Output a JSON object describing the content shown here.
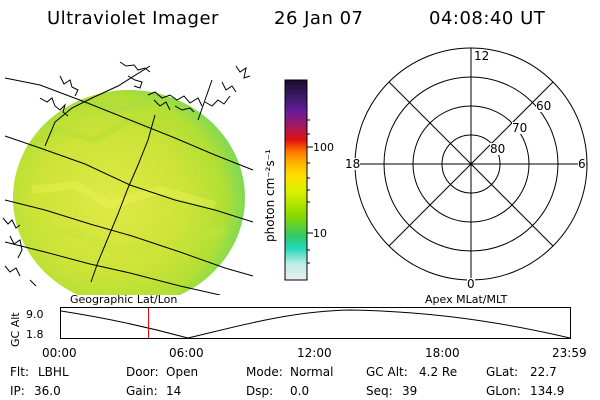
{
  "header": {
    "instrument": "Ultraviolet Imager",
    "date": "26 Jan 07",
    "time": "04:08:40 UT"
  },
  "image_panel": {
    "projection_label": "Geographic Lat/Lon",
    "colors": {
      "disk_base": "#cfe837",
      "disk_edge": "#78e05a",
      "disk_center": "#e6ef4a",
      "lines": "#000000"
    }
  },
  "colorbar": {
    "unit_label": "photon cm⁻²s⁻¹",
    "ticks": [
      "100",
      "10"
    ],
    "colors": [
      "#1a0a2a",
      "#3a1a66",
      "#6a1a9a",
      "#aa1a55",
      "#e21010",
      "#ff7a00",
      "#ffb800",
      "#ffe000",
      "#d8f000",
      "#8ad800",
      "#34c86a",
      "#22d8b8",
      "#bfeee6",
      "#e8eeee"
    ]
  },
  "polar_plot": {
    "label": "Apex MLat/MLT",
    "mlt_labels": {
      "top": "12",
      "left": "18",
      "right": "6",
      "bottom": "0"
    },
    "lat_labels": [
      "60",
      "70",
      "80"
    ]
  },
  "altitude_panel": {
    "axis_label": "GC Alt",
    "y_ticks": [
      "9.0",
      "1.8"
    ],
    "x_ticks": [
      "00:00",
      "06:00",
      "12:00",
      "18:00",
      "23:59"
    ],
    "marker_color": "#e00000",
    "current_time_fraction": 0.172
  },
  "status": {
    "filter_label": "Flt:",
    "filter_value": "LBHL",
    "door_label": "Door:",
    "door_value": "Open",
    "mode_label": "Mode:",
    "mode_value": "Normal",
    "gcalt_label": "GC Alt:",
    "gcalt_value": "4.2 Re",
    "glat_label": "GLat:",
    "glat_value": "22.7",
    "ip_label": "IP:",
    "ip_value": "36.0",
    "gain_label": "Gain:",
    "gain_value": "14",
    "dsp_label": "Dsp:",
    "dsp_value": "0.0",
    "seq_label": "Seq:",
    "seq_value": "39",
    "glon_label": "GLon:",
    "glon_value": "134.9"
  }
}
